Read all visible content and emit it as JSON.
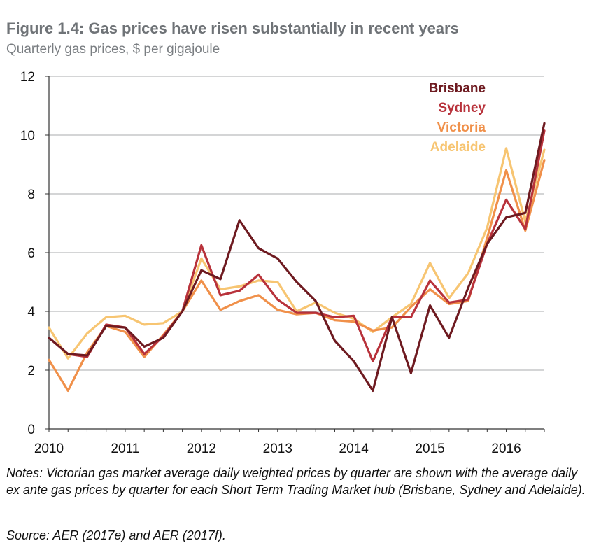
{
  "header": {
    "title": "Figure 1.4: Gas prices have risen substantially in recent years",
    "subtitle": "Quarterly gas prices, $ per gigajoule"
  },
  "footer": {
    "notes": "Notes: Victorian gas market average daily weighted prices by quarter are shown with the average daily ex ante gas prices by quarter for each Short Term Trading Market hub (Brisbane, Sydney and Adelaide).",
    "source": "Source: AER (2017e) and AER (2017f)."
  },
  "chart_data": {
    "type": "line",
    "title": "Figure 1.4: Gas prices have risen substantially in recent years",
    "subtitle": "Quarterly gas prices, $ per gigajoule",
    "xlabel": "",
    "ylabel": "",
    "ylim": [
      0,
      12
    ],
    "yticks": [
      0,
      2,
      4,
      6,
      8,
      10,
      12
    ],
    "xlim": [
      2010,
      2016.5
    ],
    "xticks": [
      2010,
      2011,
      2012,
      2013,
      2014,
      2015,
      2016
    ],
    "grid": "horizontal",
    "legend_position": "top-right",
    "x": [
      2010,
      2010.25,
      2010.5,
      2010.75,
      2011,
      2011.25,
      2011.5,
      2011.75,
      2012,
      2012.25,
      2012.5,
      2012.75,
      2013,
      2013.25,
      2013.5,
      2013.75,
      2014,
      2014.25,
      2014.5,
      2014.75,
      2015,
      2015.25,
      2015.5,
      2015.75,
      2016,
      2016.25,
      2016.5
    ],
    "series": [
      {
        "name": "Brisbane",
        "color": "#6e1a20",
        "values": [
          3.1,
          2.55,
          2.5,
          3.5,
          3.45,
          2.8,
          3.1,
          4.0,
          5.4,
          5.1,
          7.1,
          6.15,
          5.8,
          5.0,
          4.35,
          3.0,
          2.3,
          1.3,
          3.8,
          1.9,
          4.2,
          3.1,
          4.8,
          6.3,
          7.2,
          7.35,
          10.4
        ]
      },
      {
        "name": "Sydney",
        "color": "#b8323b",
        "values": [
          3.1,
          2.55,
          2.45,
          3.55,
          3.45,
          2.55,
          3.15,
          4.0,
          6.25,
          4.55,
          4.7,
          5.25,
          4.4,
          3.95,
          3.95,
          3.8,
          3.85,
          2.3,
          3.8,
          3.8,
          5.05,
          4.3,
          4.4,
          6.3,
          7.8,
          6.8,
          10.15
        ]
      },
      {
        "name": "Victoria",
        "color": "#f0904a",
        "values": [
          2.35,
          1.3,
          2.6,
          3.5,
          3.3,
          2.45,
          3.2,
          4.0,
          5.05,
          4.05,
          4.35,
          4.55,
          4.05,
          3.9,
          3.95,
          3.7,
          3.65,
          3.35,
          3.45,
          4.15,
          4.75,
          4.25,
          4.35,
          6.5,
          8.8,
          6.75,
          9.15
        ]
      },
      {
        "name": "Adelaide",
        "color": "#f7c572",
        "values": [
          3.45,
          2.4,
          3.25,
          3.8,
          3.85,
          3.55,
          3.6,
          4.0,
          5.8,
          4.75,
          4.85,
          5.05,
          5.0,
          4.0,
          4.3,
          3.95,
          3.75,
          3.3,
          3.8,
          4.25,
          5.65,
          4.45,
          5.3,
          6.85,
          9.55,
          7.05,
          9.5
        ]
      }
    ]
  }
}
